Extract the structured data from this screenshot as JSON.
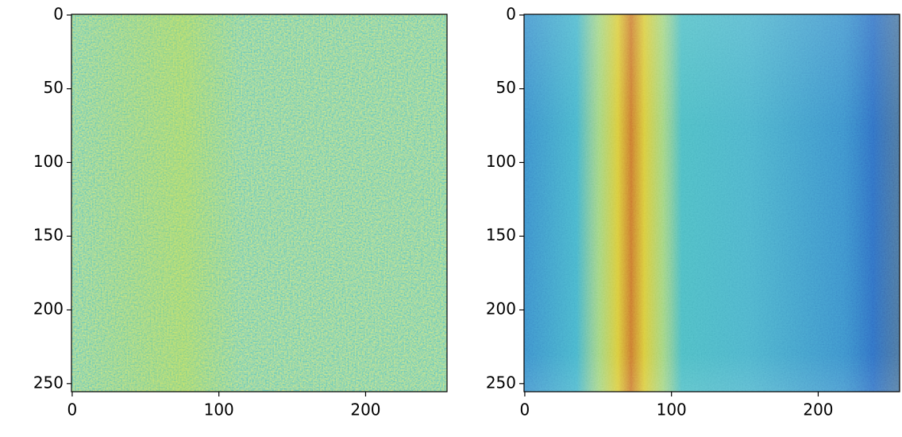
{
  "chart_data": [
    {
      "type": "image",
      "colormap": "viridis",
      "xlim": [
        -0.5,
        255.5
      ],
      "ylim": [
        255.5,
        -0.5
      ],
      "xticks": [
        0,
        100,
        200
      ],
      "yticks": [
        0,
        50,
        100,
        150,
        200,
        250
      ]
    },
    {
      "type": "image",
      "colormap": "jet",
      "xlim": [
        -0.5,
        255.5
      ],
      "ylim": [
        255.5,
        -0.5
      ],
      "xticks": [
        0,
        100,
        200
      ],
      "yticks": [
        0,
        50,
        100,
        150,
        200,
        250
      ]
    }
  ]
}
